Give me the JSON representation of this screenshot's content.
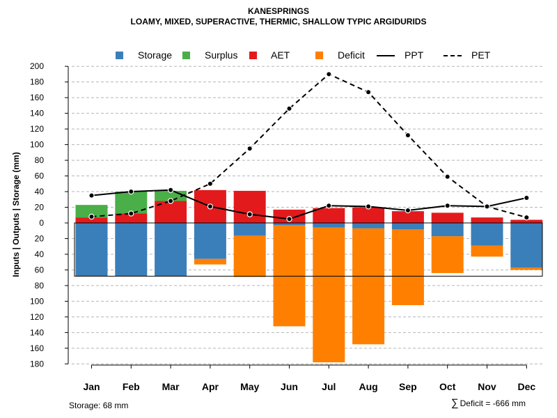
{
  "title": "KANESPRINGS",
  "subtitle": "LOAMY, MIXED, SUPERACTIVE, THERMIC, SHALLOW TYPIC ARGIDURIDS",
  "legend": [
    {
      "label": "Storage",
      "kind": "box",
      "color": "#3a7fba"
    },
    {
      "label": "Surplus",
      "kind": "box",
      "color": "#4aaf48"
    },
    {
      "label": "AET",
      "kind": "box",
      "color": "#e31a1c"
    },
    {
      "label": "Deficit",
      "kind": "box",
      "color": "#ff8000"
    },
    {
      "label": "PPT",
      "kind": "line"
    },
    {
      "label": "PET",
      "kind": "dash"
    }
  ],
  "footer": {
    "storage_text": "Storage: 68 mm",
    "deficit_symbol": "∑",
    "deficit_text": "Deficit = -666 mm"
  },
  "chart_data": {
    "type": "bar",
    "title": "KANESPRINGS",
    "subtitle": "LOAMY, MIXED, SUPERACTIVE, THERMIC, SHALLOW TYPIC ARGIDURIDS",
    "ylabel": "Inputs | Outputs | Storage    (mm)",
    "categories": [
      "Jan",
      "Feb",
      "Mar",
      "Apr",
      "May",
      "Jun",
      "Jul",
      "Aug",
      "Sep",
      "Oct",
      "Nov",
      "Dec"
    ],
    "ylim": [
      -180,
      200
    ],
    "yticks": [
      200,
      180,
      160,
      140,
      120,
      100,
      80,
      60,
      40,
      20,
      0,
      -20,
      -40,
      -60,
      -80,
      -100,
      -120,
      -140,
      -160,
      -180
    ],
    "ytick_labels": [
      "200",
      "180",
      "160",
      "140",
      "120",
      "100",
      "80",
      "60",
      "40",
      "20",
      "0",
      "20",
      "40",
      "60",
      "80",
      "100",
      "120",
      "140",
      "160",
      "180"
    ],
    "grid": true,
    "storage_capacity": 68,
    "colors": {
      "storage": "#3a7fba",
      "surplus": "#4aaf48",
      "aet": "#e31a1c",
      "deficit": "#ff8000"
    },
    "series": [
      {
        "name": "AET",
        "values": [
          7,
          12,
          28,
          42,
          41,
          17,
          19,
          20,
          15,
          13,
          7,
          4
        ]
      },
      {
        "name": "Surplus",
        "values": [
          16,
          28,
          13,
          0,
          0,
          0,
          0,
          0,
          0,
          0,
          0,
          0
        ]
      },
      {
        "name": "Storage",
        "values": [
          68,
          68,
          68,
          46,
          16,
          3,
          6,
          7,
          8,
          17,
          29,
          57
        ]
      },
      {
        "name": "Deficit",
        "values": [
          0,
          0,
          0,
          7,
          53,
          129,
          172,
          148,
          97,
          47,
          14,
          3
        ]
      },
      {
        "name": "PPT",
        "values": [
          35,
          40,
          42,
          21,
          11,
          5,
          22,
          21,
          16,
          22,
          21,
          32
        ]
      },
      {
        "name": "PET",
        "values": [
          8,
          12,
          28,
          50,
          95,
          146,
          190,
          167,
          112,
          59,
          21,
          7
        ]
      }
    ]
  }
}
